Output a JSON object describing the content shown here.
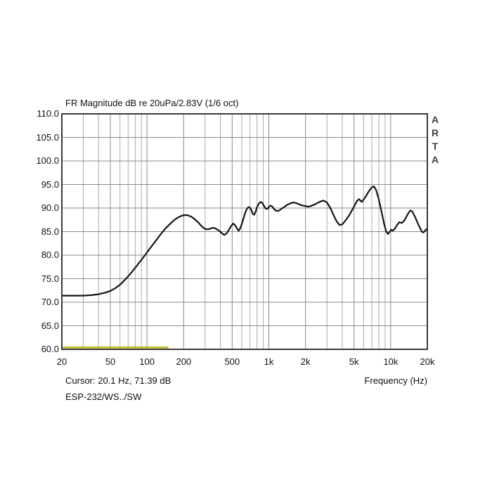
{
  "header": {
    "title": "FR Magnitude dB re 20uPa/2.83V (1/6 oct)"
  },
  "watermark": {
    "text": "ARTA"
  },
  "footer": {
    "cursor_readout": "Cursor: 20.1 Hz, 71.39 dB",
    "overlay_label": "ESP-232/WS../SW",
    "x_axis_label": "Frequency (Hz)"
  },
  "colors": {
    "curve": "#141414",
    "border": "#3a3a3a",
    "grid_major": "#8a8a8a",
    "grid_minor": "#ababab",
    "marker_line": "#b9b91e",
    "text": "#111111",
    "background": "#ffffff"
  },
  "chart_data": {
    "type": "line",
    "title": "FR Magnitude dB re 20uPa/2.83V (1/6 oct)",
    "xlabel": "Frequency (Hz)",
    "ylabel": "dB re 20uPa/2.83V",
    "x_scale": "log",
    "grid": "on",
    "xlim": [
      20,
      20000
    ],
    "ylim": [
      60,
      110
    ],
    "y_ticks": [
      110,
      105,
      100,
      95,
      90,
      85,
      80,
      75,
      70,
      65,
      60
    ],
    "y_tick_labels": [
      "110.0",
      "105.0",
      "100.0",
      "95.0",
      "90.0",
      "85.0",
      "80.0",
      "75.0",
      "70.0",
      "65.0",
      "60.0"
    ],
    "x_ticks": [
      20,
      50,
      100,
      200,
      500,
      1000,
      2000,
      5000,
      10000,
      20000
    ],
    "x_tick_labels": [
      "20",
      "50",
      "100",
      "200",
      "500",
      "1k",
      "2k",
      "5k",
      "10k",
      "20k"
    ],
    "minor_gridlines": [
      30,
      40,
      60,
      70,
      80,
      90,
      300,
      400,
      600,
      700,
      800,
      900,
      3000,
      4000,
      6000,
      7000,
      8000,
      9000
    ],
    "marker_line": {
      "x_start": 20,
      "x_end": 150,
      "y_db": 60.4,
      "color": "#b9b91e"
    },
    "cursor": {
      "freq_hz": 20.1,
      "level_db": 71.39
    },
    "series": [
      {
        "name": "ESP-232/WS../SW",
        "color": "#141414",
        "x": [
          20,
          25,
          30,
          35,
          40,
          45,
          50,
          55,
          60,
          65,
          70,
          75,
          80,
          85,
          90,
          95,
          100,
          110,
          120,
          130,
          140,
          150,
          160,
          170,
          180,
          190,
          200,
          215,
          230,
          245,
          260,
          275,
          290,
          305,
          320,
          335,
          350,
          370,
          390,
          410,
          430,
          450,
          470,
          490,
          510,
          530,
          550,
          565,
          580,
          600,
          620,
          640,
          660,
          680,
          700,
          720,
          740,
          760,
          780,
          800,
          830,
          860,
          890,
          920,
          950,
          980,
          1010,
          1040,
          1070,
          1100,
          1150,
          1200,
          1300,
          1400,
          1500,
          1600,
          1700,
          1800,
          1900,
          2000,
          2100,
          2200,
          2400,
          2600,
          2800,
          3000,
          3200,
          3400,
          3600,
          3800,
          4000,
          4300,
          4600,
          5000,
          5300,
          5500,
          5800,
          6200,
          6600,
          7000,
          7300,
          7600,
          8000,
          8400,
          8800,
          9200,
          9500,
          9800,
          10100,
          10400,
          10800,
          11300,
          11800,
          12300,
          13000,
          13800,
          14500,
          15000,
          15800,
          16600,
          17400,
          18000,
          18600,
          19300,
          20000
        ],
        "y": [
          71.4,
          71.4,
          71.4,
          71.5,
          71.7,
          72.0,
          72.4,
          73.0,
          73.7,
          74.6,
          75.5,
          76.4,
          77.3,
          78.2,
          79.0,
          79.8,
          80.6,
          82.0,
          83.3,
          84.5,
          85.5,
          86.3,
          87.0,
          87.6,
          88.0,
          88.3,
          88.5,
          88.5,
          88.2,
          87.7,
          87.1,
          86.4,
          85.8,
          85.5,
          85.5,
          85.7,
          85.8,
          85.6,
          85.2,
          84.7,
          84.3,
          84.6,
          85.4,
          86.2,
          86.7,
          86.3,
          85.6,
          85.2,
          85.6,
          86.6,
          87.8,
          89.0,
          89.8,
          90.2,
          90.1,
          89.5,
          88.7,
          88.6,
          89.3,
          90.2,
          91.0,
          91.3,
          91.0,
          90.3,
          89.8,
          89.9,
          90.4,
          90.5,
          90.3,
          89.8,
          89.4,
          89.4,
          90.0,
          90.6,
          91.0,
          91.2,
          91.0,
          90.7,
          90.5,
          90.4,
          90.3,
          90.4,
          90.8,
          91.3,
          91.6,
          91.2,
          90.0,
          88.5,
          87.2,
          86.4,
          86.5,
          87.5,
          88.6,
          90.3,
          91.5,
          91.9,
          91.3,
          92.3,
          93.5,
          94.4,
          94.6,
          93.8,
          91.8,
          89.3,
          86.8,
          85.0,
          84.5,
          84.9,
          85.4,
          85.2,
          85.6,
          86.4,
          87.0,
          86.8,
          87.4,
          88.7,
          89.5,
          89.3,
          88.2,
          86.9,
          85.8,
          85.0,
          84.8,
          85.3,
          85.7
        ]
      }
    ]
  }
}
